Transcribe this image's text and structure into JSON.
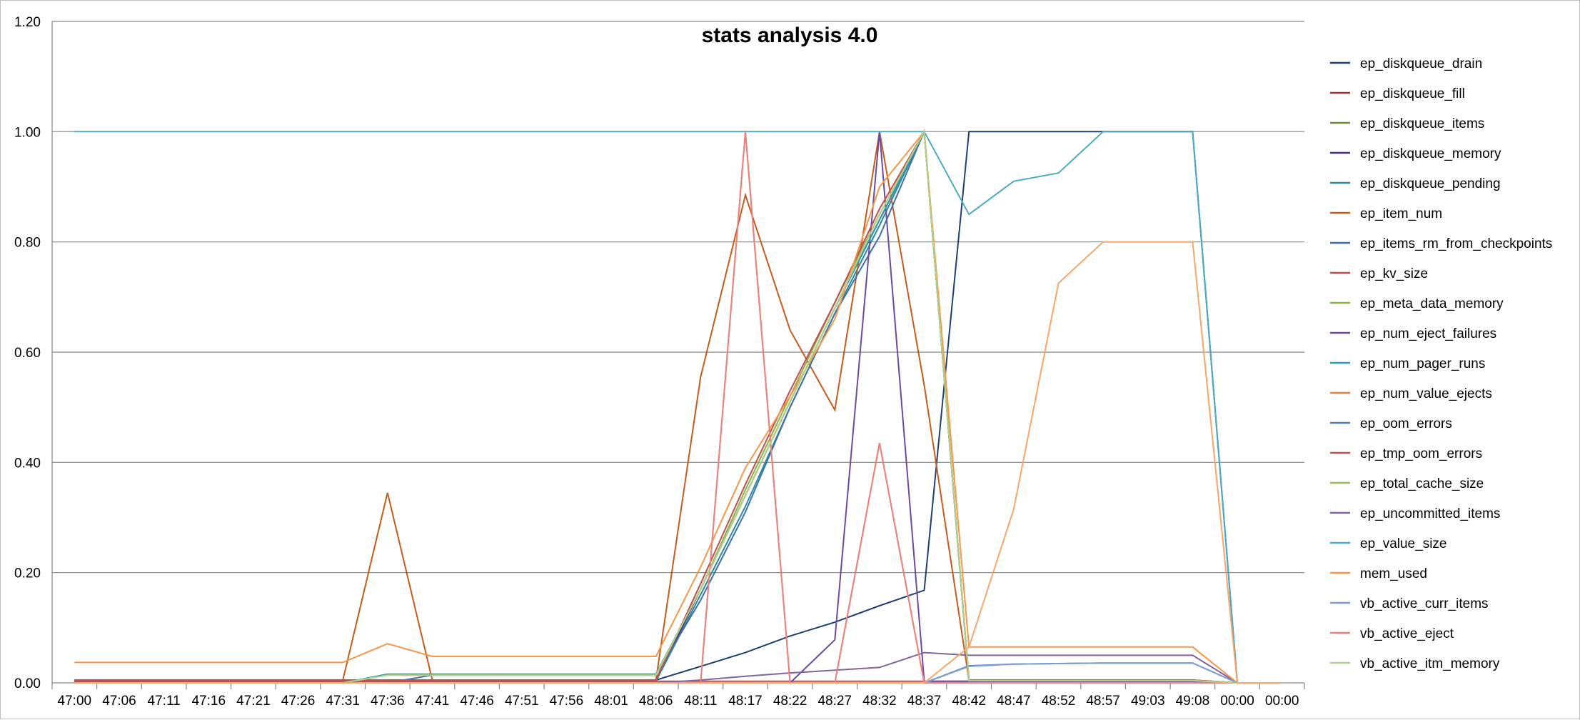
{
  "chart_data": {
    "type": "line",
    "title": "stats analysis 4.0",
    "xlabel": "",
    "ylabel": "",
    "ylim": [
      0,
      1.2
    ],
    "yticks": [
      "0.00",
      "0.20",
      "0.40",
      "0.60",
      "0.80",
      "1.00",
      "1.20"
    ],
    "ytick_values": [
      0,
      0.2,
      0.4,
      0.6,
      0.8,
      1.0,
      1.2
    ],
    "grid": true,
    "legend_position": "right",
    "categories": [
      "47:00",
      "47:06",
      "47:11",
      "47:16",
      "47:21",
      "47:26",
      "47:31",
      "47:36",
      "47:41",
      "47:46",
      "47:51",
      "47:56",
      "48:01",
      "48:06",
      "48:11",
      "48:17",
      "48:22",
      "48:27",
      "48:32",
      "48:37",
      "48:42",
      "48:47",
      "48:52",
      "48:57",
      "49:03",
      "49:08",
      "00:00",
      "00:00"
    ],
    "series": [
      {
        "name": "ep_diskqueue_drain",
        "color": "#1f3f73",
        "values": [
          0.005,
          0.005,
          0.005,
          0.005,
          0.005,
          0.005,
          0.005,
          0.005,
          0.005,
          0.005,
          0.005,
          0.005,
          0.005,
          0.005,
          0.03,
          0.055,
          0.085,
          0.11,
          0.14,
          0.168,
          1.0,
          1.0,
          1.0,
          1.0,
          1.0,
          1.0,
          0,
          0
        ]
      },
      {
        "name": "ep_diskqueue_fill",
        "color": "#9e3330",
        "values": [
          0.003,
          0.003,
          0.003,
          0.003,
          0.003,
          0.003,
          0.003,
          0.003,
          0.003,
          0.003,
          0.003,
          0.003,
          0.003,
          0.003,
          0.17,
          0.34,
          0.51,
          0.68,
          0.84,
          1.0,
          0.003,
          0.003,
          0.003,
          0.003,
          0.003,
          0.003,
          0,
          0
        ]
      },
      {
        "name": "ep_diskqueue_items",
        "color": "#708b32",
        "values": [
          0.003,
          0.003,
          0.003,
          0.003,
          0.003,
          0.003,
          0.003,
          0.003,
          0.003,
          0.003,
          0.003,
          0.003,
          0.003,
          0.003,
          0.17,
          0.34,
          0.51,
          0.68,
          0.84,
          1.0,
          0.003,
          0.003,
          0.003,
          0.003,
          0.003,
          0.003,
          0,
          0
        ]
      },
      {
        "name": "ep_diskqueue_memory",
        "color": "#4a2c7d",
        "values": [
          0.003,
          0.003,
          0.003,
          0.003,
          0.003,
          0.003,
          0.003,
          0.003,
          0.003,
          0.003,
          0.003,
          0.003,
          0.003,
          0.003,
          0.17,
          0.34,
          0.51,
          0.68,
          0.84,
          1.0,
          0.003,
          0.003,
          0.003,
          0.003,
          0.003,
          0.003,
          0,
          0
        ]
      },
      {
        "name": "ep_diskqueue_pending",
        "color": "#2a8aa5",
        "values": [
          0.003,
          0.003,
          0.003,
          0.003,
          0.003,
          0.003,
          0.003,
          0.003,
          0.003,
          0.003,
          0.003,
          0.003,
          0.003,
          0.003,
          0.16,
          0.32,
          0.5,
          0.67,
          0.83,
          1.0,
          0.003,
          0.003,
          0.003,
          0.003,
          0.003,
          0.003,
          0,
          0
        ]
      },
      {
        "name": "ep_item_num",
        "color": "#c65b1e",
        "values": [
          0.005,
          0.005,
          0.005,
          0.005,
          0.005,
          0.005,
          0.005,
          0.345,
          0.005,
          0.005,
          0.005,
          0.005,
          0.005,
          0.005,
          0.555,
          0.885,
          0.64,
          0.495,
          1.0,
          0.54,
          0.005,
          0.005,
          0.005,
          0.005,
          0.005,
          0.005,
          0,
          0
        ]
      },
      {
        "name": "ep_items_rm_from_checkpoints",
        "color": "#3f6fae",
        "values": [
          0,
          0,
          0,
          0,
          0,
          0,
          0,
          0,
          0.014,
          0.014,
          0.014,
          0.014,
          0.014,
          0.014,
          0.15,
          0.31,
          0.5,
          0.67,
          0.81,
          1.0,
          0.005,
          0.005,
          0.005,
          0.005,
          0.005,
          0.005,
          0,
          0
        ]
      },
      {
        "name": "ep_kv_size",
        "color": "#c44c48",
        "values": [
          0.003,
          0.003,
          0.003,
          0.003,
          0.003,
          0.003,
          0.003,
          0.003,
          0.003,
          0.003,
          0.003,
          0.003,
          0.003,
          0.003,
          0.003,
          0.003,
          0.003,
          0.003,
          0.003,
          0.003,
          0.003,
          0.003,
          0.003,
          0.003,
          0.003,
          0.003,
          0,
          0
        ]
      },
      {
        "name": "ep_meta_data_memory",
        "color": "#8db143",
        "values": [
          0,
          0,
          0,
          0,
          0,
          0,
          0,
          0.015,
          0.015,
          0.015,
          0.015,
          0.015,
          0.015,
          0.015,
          0.17,
          0.35,
          0.52,
          0.69,
          0.85,
          1.0,
          0.004,
          0.004,
          0.004,
          0.004,
          0.004,
          0.004,
          0,
          0
        ]
      },
      {
        "name": "ep_num_eject_failures",
        "color": "#6b4b9f",
        "values": [
          0,
          0,
          0,
          0,
          0,
          0,
          0,
          0,
          0,
          0,
          0,
          0,
          0,
          0,
          0,
          0,
          0,
          0.078,
          1.0,
          0.003,
          0.003,
          0.003,
          0.003,
          0.003,
          0.003,
          0.003,
          0,
          0
        ]
      },
      {
        "name": "ep_num_pager_runs",
        "color": "#2f9fb8",
        "values": [
          0,
          0,
          0,
          0,
          0,
          0,
          0,
          0.016,
          0.016,
          0.016,
          0.016,
          0.016,
          0.016,
          0.016,
          0.17,
          0.34,
          0.51,
          0.68,
          0.84,
          1.0,
          0.004,
          0.004,
          0.004,
          0.004,
          0.004,
          0.004,
          0,
          0
        ]
      },
      {
        "name": "ep_num_value_ejects",
        "color": "#e8823a",
        "values": [
          0,
          0,
          0,
          0,
          0,
          0,
          0,
          0,
          0,
          0,
          0,
          0,
          0,
          0,
          0,
          1.0,
          0,
          0,
          0.435,
          0,
          0,
          0,
          0,
          0,
          0,
          0,
          0,
          0
        ]
      },
      {
        "name": "ep_oom_errors",
        "color": "#4f7fbd",
        "values": [
          0,
          0,
          0,
          0,
          0,
          0,
          0,
          0,
          0,
          0,
          0,
          0,
          0,
          0,
          0,
          0,
          0,
          0,
          0,
          0,
          0.031,
          0.034,
          0.035,
          0.036,
          0.036,
          0.036,
          0,
          0
        ]
      },
      {
        "name": "ep_tmp_oom_errors",
        "color": "#c0504d",
        "values": [
          0.005,
          0.005,
          0.005,
          0.005,
          0.005,
          0.005,
          0.005,
          0.005,
          0.005,
          0.005,
          0.005,
          0.005,
          0.005,
          0.005,
          0.18,
          0.36,
          0.53,
          0.69,
          0.86,
          1.0,
          0.005,
          0.005,
          0.005,
          0.005,
          0.005,
          0.005,
          0,
          0
        ]
      },
      {
        "name": "ep_total_cache_size",
        "color": "#9bbb59",
        "values": [
          0,
          0,
          0,
          0,
          0,
          0,
          0,
          0.014,
          0.014,
          0.014,
          0.014,
          0.014,
          0.014,
          0.014,
          0.17,
          0.34,
          0.51,
          0.68,
          0.85,
          1.0,
          0.004,
          0.004,
          0.004,
          0.004,
          0.004,
          0.004,
          0,
          0
        ]
      },
      {
        "name": "ep_uncommitted_items",
        "color": "#8064a2",
        "values": [
          0,
          0,
          0,
          0,
          0,
          0,
          0,
          0,
          0,
          0,
          0,
          0,
          0,
          0,
          0.005,
          0.012,
          0.018,
          0.023,
          0.028,
          0.055,
          0.05,
          0.05,
          0.05,
          0.05,
          0.05,
          0.05,
          0,
          0
        ]
      },
      {
        "name": "ep_value_size",
        "color": "#4bacc6",
        "values": [
          1.0,
          1.0,
          1.0,
          1.0,
          1.0,
          1.0,
          1.0,
          1.0,
          1.0,
          1.0,
          1.0,
          1.0,
          1.0,
          1.0,
          1.0,
          1.0,
          1.0,
          1.0,
          1.0,
          1.0,
          0.85,
          0.91,
          0.925,
          1.0,
          1.0,
          1.0,
          0,
          0
        ]
      },
      {
        "name": "mem_used",
        "color": "#f79646",
        "values": [
          0.037,
          0.037,
          0.037,
          0.037,
          0.037,
          0.037,
          0.037,
          0.071,
          0.048,
          0.048,
          0.048,
          0.048,
          0.048,
          0.048,
          0.21,
          0.39,
          0.52,
          0.66,
          0.9,
          1.0,
          0.065,
          0.065,
          0.065,
          0.065,
          0.065,
          0.065,
          0,
          0
        ]
      },
      {
        "name": "vb_active_curr_items",
        "color": "#7ba0d0",
        "values": [
          0,
          0,
          0,
          0,
          0,
          0,
          0,
          0,
          0,
          0,
          0,
          0,
          0,
          0,
          0,
          0,
          0,
          0,
          0,
          0,
          0.03,
          0.034,
          0.035,
          0.036,
          0.036,
          0.036,
          0,
          0
        ]
      },
      {
        "name": "vb_active_eject",
        "color": "#e8837f",
        "values": [
          0,
          0,
          0,
          0,
          0,
          0,
          0,
          0,
          0,
          0,
          0,
          0,
          0,
          0,
          0,
          1.0,
          0,
          0,
          0.435,
          0,
          0,
          0,
          0,
          0,
          0,
          0,
          0,
          0
        ]
      },
      {
        "name": "vb_active_itm_memory",
        "color": "#b3d08a",
        "values": [
          0,
          0,
          0,
          0,
          0,
          0,
          0,
          0.014,
          0.014,
          0.014,
          0.014,
          0.014,
          0.014,
          0.014,
          0.17,
          0.34,
          0.51,
          0.68,
          0.85,
          1.0,
          0.004,
          0.004,
          0.004,
          0.004,
          0.004,
          0.004,
          0,
          0
        ]
      },
      {
        "name": "",
        "color": "#f9a569",
        "values": [
          0,
          0,
          0,
          0,
          0,
          0,
          0,
          0,
          0,
          0,
          0,
          0,
          0,
          0,
          0,
          0,
          0,
          0,
          0,
          0,
          0.065,
          0.315,
          0.725,
          0.8,
          0.8,
          0.8,
          0,
          0
        ]
      }
    ]
  }
}
